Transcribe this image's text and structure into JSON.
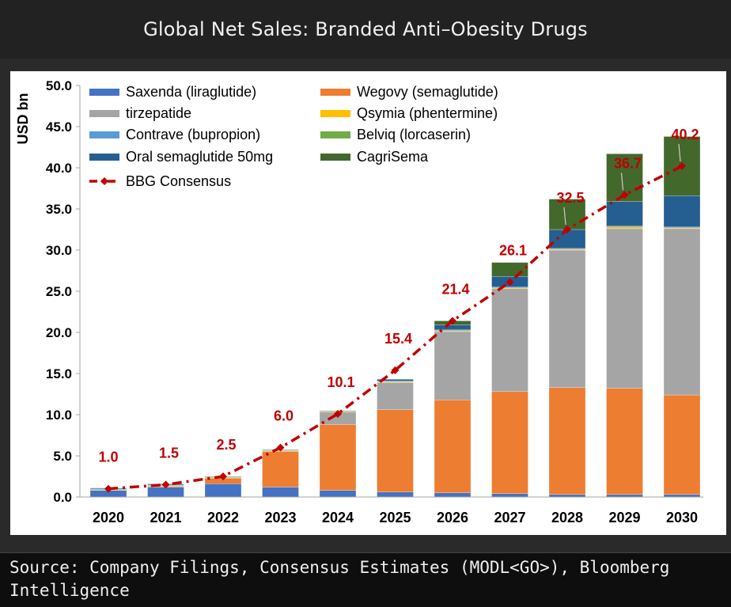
{
  "header": {
    "title": "Global Net Sales: Branded Anti–Obesity Drugs"
  },
  "footer": {
    "source": "Source: Company Filings, Consensus Estimates (MODL<GO>), Bloomberg Intelligence"
  },
  "chart_data": {
    "type": "bar",
    "stacked": true,
    "title": "",
    "xlabel": "",
    "ylabel": "USD bn",
    "ylim": [
      0,
      50
    ],
    "yticks": [
      "0.0",
      "5.0",
      "10.0",
      "15.0",
      "20.0",
      "25.0",
      "30.0",
      "35.0",
      "40.0",
      "45.0",
      "50.0"
    ],
    "grid": false,
    "legend_position": "top-left",
    "categories": [
      "2020",
      "2021",
      "2022",
      "2023",
      "2024",
      "2025",
      "2026",
      "2027",
      "2028",
      "2029",
      "2030"
    ],
    "series": [
      {
        "name": "Saxenda (liraglutide)",
        "color": "#4472c4",
        "values": [
          0.8,
          1.2,
          1.6,
          1.2,
          0.8,
          0.6,
          0.5,
          0.4,
          0.3,
          0.3,
          0.3
        ]
      },
      {
        "name": "Wegovy (semaglutide)",
        "color": "#ed7d31",
        "values": [
          0.0,
          0.1,
          0.7,
          4.3,
          8.0,
          10.0,
          11.3,
          12.4,
          13.0,
          12.9,
          12.1
        ]
      },
      {
        "name": "tirzepatide",
        "color": "#a5a5a5",
        "values": [
          0.0,
          0.0,
          0.0,
          0.1,
          1.5,
          3.3,
          8.3,
          12.5,
          16.7,
          19.4,
          20.2
        ]
      },
      {
        "name": "Qsymia (phentermine)",
        "color": "#ffc000",
        "values": [
          0.1,
          0.1,
          0.1,
          0.1,
          0.1,
          0.1,
          0.1,
          0.1,
          0.1,
          0.2,
          0.1
        ]
      },
      {
        "name": "Contrave (bupropion)",
        "color": "#5b9bd5",
        "values": [
          0.2,
          0.2,
          0.1,
          0.1,
          0.1,
          0.1,
          0.1,
          0.1,
          0.1,
          0.1,
          0.1
        ]
      },
      {
        "name": "Belviq (lorcaserin)",
        "color": "#70ad47",
        "values": [
          0.0,
          0.0,
          0.0,
          0.0,
          0.0,
          0.0,
          0.0,
          0.0,
          0.0,
          0.0,
          0.0
        ]
      },
      {
        "name": "Oral semaglutide 50mg",
        "color": "#255e91",
        "values": [
          0.0,
          0.0,
          0.0,
          0.0,
          0.0,
          0.2,
          0.6,
          1.3,
          2.3,
          3.0,
          3.8
        ]
      },
      {
        "name": "CagriSema",
        "color": "#43682b",
        "values": [
          0.0,
          0.0,
          0.0,
          0.0,
          0.0,
          0.0,
          0.5,
          1.7,
          3.7,
          5.8,
          7.2
        ]
      }
    ],
    "consensus": {
      "name": "BBG Consensus",
      "color": "#c00000",
      "values": [
        1.0,
        1.5,
        2.5,
        6.0,
        10.1,
        15.4,
        21.4,
        26.1,
        32.5,
        36.7,
        40.2
      ],
      "labels": [
        "1.0",
        "1.5",
        "2.5",
        "6.0",
        "10.1",
        "15.4",
        "21.4",
        "26.1",
        "32.5",
        "36.7",
        "40.2"
      ]
    }
  }
}
